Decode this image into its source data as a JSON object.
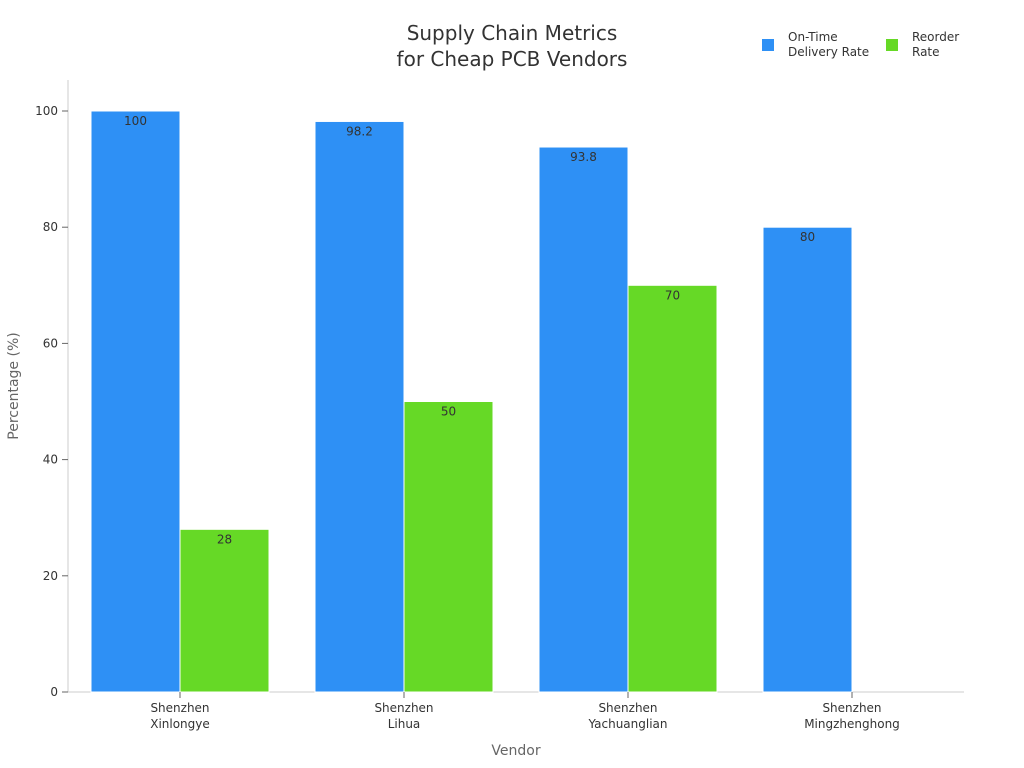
{
  "chart_data": {
    "type": "bar",
    "title_lines": [
      "Supply Chain Metrics",
      "for Cheap PCB Vendors"
    ],
    "xlabel": "Vendor",
    "ylabel": "Percentage (%)",
    "categories": [
      [
        "Shenzhen",
        "Xinlongye"
      ],
      [
        "Shenzhen",
        "Lihua"
      ],
      [
        "Shenzhen",
        "Yachuanglian"
      ],
      [
        "Shenzhen",
        "Mingzhenghong"
      ]
    ],
    "series": [
      {
        "name_lines": [
          "On-Time",
          "Delivery Rate"
        ],
        "color": "#2e90f5",
        "values": [
          100,
          98.2,
          93.8,
          80
        ]
      },
      {
        "name_lines": [
          "Reorder",
          "Rate"
        ],
        "color": "#66d926",
        "values": [
          28,
          50,
          70,
          null
        ]
      }
    ],
    "ylim": [
      0,
      105
    ],
    "yticks": [
      0,
      20,
      40,
      60,
      80,
      100
    ],
    "grid": false,
    "legend_position": "top-right",
    "data_labels": true
  }
}
